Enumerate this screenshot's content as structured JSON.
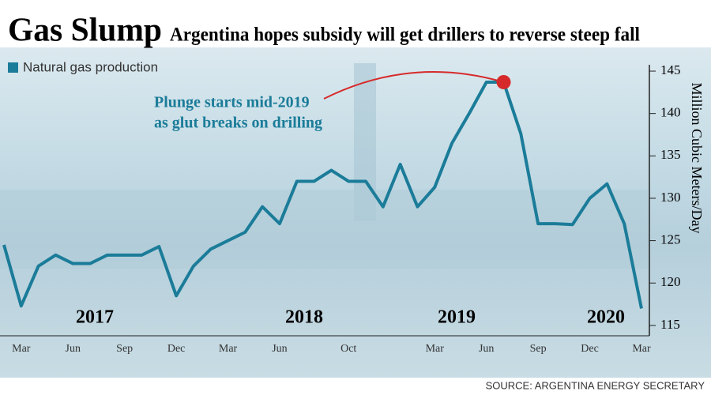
{
  "chart_data": {
    "type": "line",
    "title": "Gas Slump",
    "subtitle": "Argentina hopes subsidy will get drillers to reverse steep fall",
    "y_label": "Million Cubic Meters/Day",
    "source": "SOURCE: ARGENTINA ENERGY SECRETARY",
    "annotation": [
      "Plunge starts mid-2019",
      "as glut breaks on drilling"
    ],
    "year_labels": [
      "2017",
      "2018",
      "2019",
      "2020"
    ],
    "categories": [
      null,
      "Mar",
      null,
      null,
      "Jun",
      null,
      null,
      "Sep",
      null,
      null,
      "Dec",
      null,
      null,
      "Mar",
      null,
      null,
      "Jun",
      null,
      null,
      null,
      "Oct",
      null,
      null,
      null,
      null,
      "Mar",
      null,
      null,
      "Jun",
      null,
      null,
      "Sep",
      null,
      null,
      "Dec",
      null,
      null,
      "Mar"
    ],
    "series": [
      {
        "name": "Natural gas production",
        "color": "#1b7c99",
        "values": [
          124.5,
          117.3,
          122,
          123.3,
          122.3,
          122.3,
          123.3,
          123.3,
          123.3,
          124.3,
          118.5,
          122,
          124,
          125,
          126,
          129,
          127,
          132,
          132,
          133.3,
          132,
          132,
          129,
          134,
          129,
          131.3,
          136.5,
          140,
          143.7,
          143.7,
          137.6,
          127,
          127,
          126.9,
          130,
          131.7,
          127,
          117
        ]
      }
    ],
    "highlight_color": "#d62a2a",
    "ylim": [
      114,
      146
    ],
    "yticks": [
      115,
      120,
      125,
      130,
      135,
      140,
      145
    ]
  }
}
